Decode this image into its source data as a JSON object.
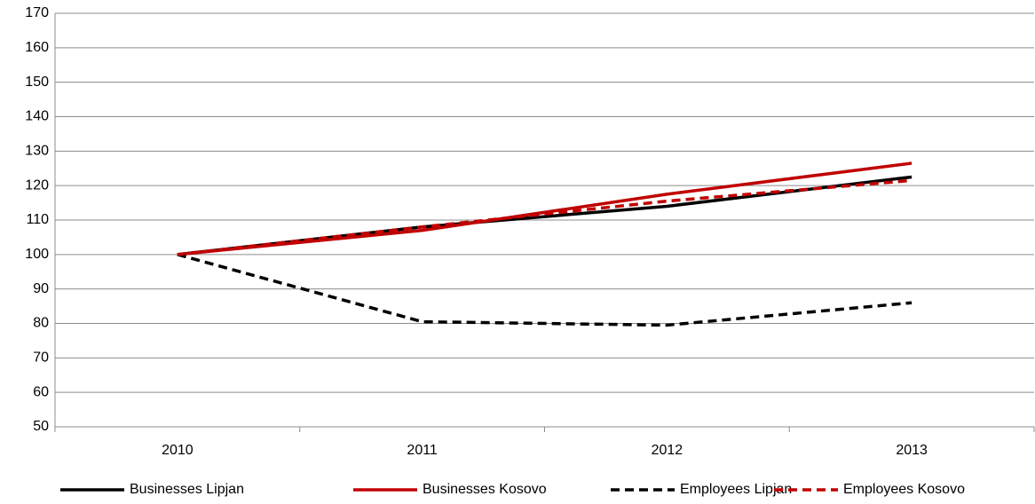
{
  "chart_data": {
    "type": "line",
    "categories": [
      "2010",
      "2011",
      "2012",
      "2013"
    ],
    "series": [
      {
        "name": "Businesses Lipjan",
        "color": "#000000",
        "dash": false,
        "values": [
          100,
          108,
          114,
          122.5
        ]
      },
      {
        "name": "Businesses Kosovo",
        "color": "#c00000",
        "dash": false,
        "values": [
          100,
          107,
          117.5,
          126.5
        ]
      },
      {
        "name": "Employees Lipjan",
        "color": "#000000",
        "dash": true,
        "values": [
          100,
          80.5,
          79.5,
          86
        ]
      },
      {
        "name": "Employees Kosovo",
        "color": "#c00000",
        "dash": true,
        "values": [
          100,
          108,
          115.5,
          121.5
        ]
      }
    ],
    "ylim": [
      50,
      170
    ],
    "yticks": [
      50,
      60,
      70,
      80,
      90,
      100,
      110,
      120,
      130,
      140,
      150,
      160,
      170
    ],
    "grid": true,
    "legend": "bottom"
  }
}
